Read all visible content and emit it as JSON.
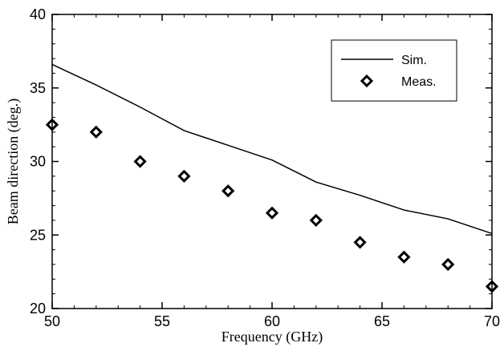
{
  "chart_data": {
    "type": "scatter",
    "xlabel": "Frequency (GHz)",
    "ylabel": "Beam direction (deg.)",
    "xlim": [
      50,
      70
    ],
    "ylim": [
      20,
      40
    ],
    "xticks": [
      "50",
      "55",
      "60",
      "65",
      "70"
    ],
    "yticks": [
      "20",
      "25",
      "30",
      "35",
      "40"
    ],
    "grid": false,
    "legend_position": "top-right",
    "series": [
      {
        "name": "Sim.",
        "style": "line",
        "color": "#000000",
        "x": [
          50,
          52,
          54,
          56,
          58,
          60,
          62,
          64,
          66,
          68,
          70
        ],
        "y": [
          36.6,
          35.2,
          33.7,
          32.1,
          31.1,
          30.1,
          28.6,
          27.7,
          26.7,
          26.1,
          25.1
        ]
      },
      {
        "name": "Meas.",
        "style": "marker",
        "marker": "diamond",
        "color": "#000000",
        "x": [
          50,
          52,
          54,
          56,
          58,
          60,
          62,
          64,
          66,
          68,
          70
        ],
        "y": [
          32.5,
          32.0,
          30.0,
          29.0,
          28.0,
          26.5,
          26.0,
          24.5,
          23.5,
          23.0,
          21.5
        ]
      }
    ]
  }
}
